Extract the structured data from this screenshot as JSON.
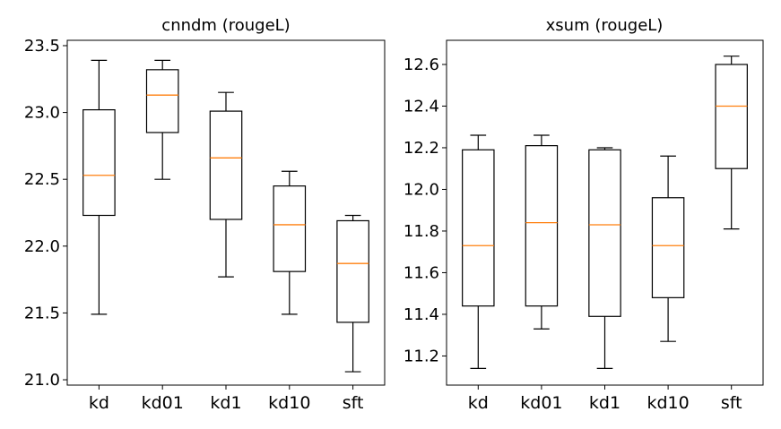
{
  "figure": {
    "background": "#ffffff"
  },
  "chart_data": [
    {
      "type": "box",
      "title": "cnndm (rougeL)",
      "xlabel": "",
      "ylabel": "",
      "categories": [
        "kd",
        "kd01",
        "kd1",
        "kd10",
        "sft"
      ],
      "ylim": [
        20.96,
        23.54
      ],
      "yticks": [
        21.0,
        21.5,
        22.0,
        22.5,
        23.0,
        23.5
      ],
      "ytick_labels": [
        "21.0",
        "21.5",
        "22.0",
        "22.5",
        "23.0",
        "23.5"
      ],
      "boxes": [
        {
          "min": 21.49,
          "q1": 22.23,
          "median": 22.53,
          "q3": 23.02,
          "max": 23.39
        },
        {
          "min": 22.5,
          "q1": 22.85,
          "median": 23.13,
          "q3": 23.32,
          "max": 23.39
        },
        {
          "min": 21.77,
          "q1": 22.2,
          "median": 22.66,
          "q3": 23.01,
          "max": 23.15
        },
        {
          "min": 21.49,
          "q1": 21.81,
          "median": 22.16,
          "q3": 22.45,
          "max": 22.56
        },
        {
          "min": 21.06,
          "q1": 21.43,
          "median": 21.87,
          "q3": 22.19,
          "max": 22.23
        }
      ],
      "box_color": "#000000",
      "median_color": "#ff7f0e"
    },
    {
      "type": "box",
      "title": "xsum (rougeL)",
      "xlabel": "",
      "ylabel": "",
      "categories": [
        "kd",
        "kd01",
        "kd1",
        "kd10",
        "sft"
      ],
      "ylim": [
        11.06,
        12.716
      ],
      "yticks": [
        11.2,
        11.4,
        11.6,
        11.8,
        12.0,
        12.2,
        12.4,
        12.6
      ],
      "ytick_labels": [
        "11.2",
        "11.4",
        "11.6",
        "11.8",
        "12.0",
        "12.2",
        "12.4",
        "12.6"
      ],
      "boxes": [
        {
          "min": 11.14,
          "q1": 11.44,
          "median": 11.73,
          "q3": 12.19,
          "max": 12.26
        },
        {
          "min": 11.33,
          "q1": 11.44,
          "median": 11.84,
          "q3": 12.21,
          "max": 12.26
        },
        {
          "min": 11.14,
          "q1": 11.39,
          "median": 11.83,
          "q3": 12.19,
          "max": 12.2
        },
        {
          "min": 11.27,
          "q1": 11.48,
          "median": 11.73,
          "q3": 11.96,
          "max": 12.16
        },
        {
          "min": 11.81,
          "q1": 12.1,
          "median": 12.4,
          "q3": 12.6,
          "max": 12.64
        }
      ],
      "box_color": "#000000",
      "median_color": "#ff7f0e"
    }
  ]
}
